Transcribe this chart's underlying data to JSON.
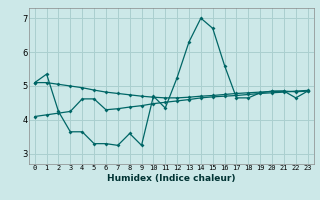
{
  "xlabel": "Humidex (Indice chaleur)",
  "bg_color": "#cce8e8",
  "grid_color": "#aacfcf",
  "line_color": "#006666",
  "xlim": [
    -0.5,
    23.5
  ],
  "ylim": [
    2.7,
    7.3
  ],
  "yticks": [
    3,
    4,
    5,
    6,
    7
  ],
  "xtick_labels": [
    "0",
    "1",
    "2",
    "3",
    "4",
    "5",
    "6",
    "7",
    "8",
    "9",
    "10",
    "11",
    "12",
    "13",
    "14",
    "15",
    "16",
    "17",
    "18",
    "19",
    "20",
    "21",
    "22",
    "23"
  ],
  "line1_x": [
    0,
    1,
    2,
    3,
    4,
    5,
    6,
    7,
    8,
    9,
    10,
    11,
    12,
    13,
    14,
    15,
    16,
    17,
    18,
    19,
    20,
    21,
    22,
    23
  ],
  "line1_y": [
    5.1,
    5.35,
    4.25,
    3.65,
    3.65,
    3.3,
    3.3,
    3.25,
    3.6,
    3.25,
    4.7,
    4.35,
    5.25,
    6.3,
    7.0,
    6.7,
    5.6,
    4.65,
    4.65,
    4.8,
    4.85,
    4.85,
    4.65,
    4.85
  ],
  "line2_x": [
    0,
    1,
    2,
    3,
    4,
    5,
    6,
    7,
    8,
    9,
    10,
    11,
    12,
    13,
    14,
    15,
    16,
    17,
    18,
    19,
    20,
    21,
    22,
    23
  ],
  "line2_y": [
    5.1,
    5.1,
    5.05,
    5.0,
    4.95,
    4.88,
    4.82,
    4.78,
    4.74,
    4.7,
    4.67,
    4.65,
    4.65,
    4.67,
    4.7,
    4.72,
    4.75,
    4.78,
    4.8,
    4.82,
    4.84,
    4.85,
    4.83,
    4.85
  ],
  "line3_x": [
    0,
    1,
    2,
    3,
    4,
    5,
    6,
    7,
    8,
    9,
    10,
    11,
    12,
    13,
    14,
    15,
    16,
    17,
    18,
    19,
    20,
    21,
    22,
    23
  ],
  "line3_y": [
    4.1,
    4.15,
    4.2,
    4.25,
    4.62,
    4.62,
    4.3,
    4.33,
    4.38,
    4.42,
    4.48,
    4.52,
    4.56,
    4.6,
    4.65,
    4.68,
    4.7,
    4.72,
    4.75,
    4.78,
    4.8,
    4.82,
    4.85,
    4.87
  ]
}
